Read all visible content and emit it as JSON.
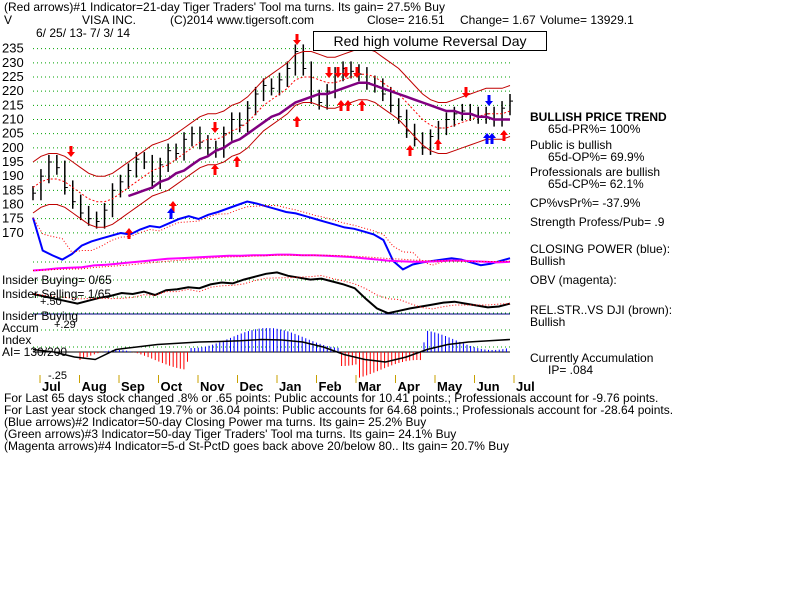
{
  "header": {
    "line1": "(Red arrows)#1 Indicator=21-day Tiger Traders' Tool ma turns. Its gain= 27.5% Buy",
    "ticker": "V",
    "company": "VISA INC.",
    "copyright": "(C)2014 www.tigersoft.com",
    "close": "Close=  216.51",
    "change": "Change= 1.67",
    "volume": "Volume= 13929.1",
    "date_range": "6/ 25/ 13- 7/ 3/ 14"
  },
  "banner": "Red high volume Reversal Day",
  "right_panel": {
    "trend_title": "BULLISH PRICE TREND",
    "pr": "65d-PR%= 100%",
    "public_title": "Public is bullish",
    "op": "65d-OP%= 69.9%",
    "prof_title": "Professionals are bullish",
    "cp": "65d-CP%= 62.1%",
    "cpvspr": "CP%vsPr%= -37.9%",
    "strength": "Strength Profess/Pub= .9",
    "closing_power": "CLOSING POWER (blue):",
    "closing_power_val": "Bullish",
    "obv": "OBV (magenta):",
    "relstr": "REL.STR..VS DJI (brown):",
    "relstr_val": "Bullish",
    "accum": "Currently Accumulation",
    "ip": "IP= .084"
  },
  "left_labels": {
    "insider_buying": "Insider Buying= 0/65",
    "insider_selling": "Insider Selling= 1/65",
    "insider_buying2": "Insider Buying",
    "accum": "Accum",
    "index": "Index",
    "ai": "AI= 130/200",
    "plus50": "+.50",
    "plus29": "+.29",
    "minus25": "-.25"
  },
  "footer": {
    "line1": "For Last 65 days stock changed  .8% or  .65 points:  Public accounts for  10.41 points.;  Professionals account for -9.76 points.",
    "line2": "For Last year stock changed  19.7% or  36.04 points:  Public accounts for  64.68 points.;  Professionals account for -28.64 points.",
    "line3": "(Blue arrows)#2 Indicator=50-day Closing Power ma turns. Its gain= 25.2% Buy",
    "line4": "(Green arrows)#3 Indicator=50-day Tiger Traders' Tool ma turns. Its gain= 24.1% Buy",
    "line5": "(Magenta arrows)#4 Indicator=5-d St-PctD goes back above 20/below 80.. Its gain= 20.7% Buy"
  },
  "chart_data": {
    "type": "line",
    "title": "VISA INC.",
    "y_ticks": [
      235,
      230,
      225,
      220,
      215,
      210,
      205,
      200,
      195,
      190,
      185,
      180,
      175,
      170
    ],
    "ylim": [
      165,
      237
    ],
    "x_month_labels": [
      "Jul",
      "Aug",
      "Sep",
      "Oct",
      "Nov",
      "Dec",
      "Jan",
      "Feb",
      "Mar",
      "Apr",
      "May",
      "Jun",
      "Jul"
    ],
    "price_close": [
      184,
      190,
      195,
      193,
      186,
      181,
      177,
      175,
      174,
      178,
      185,
      188,
      192,
      196,
      195,
      188,
      194,
      199,
      198,
      203,
      205,
      202,
      200,
      199,
      205,
      210,
      208,
      214,
      219,
      222,
      221,
      224,
      228,
      234,
      228,
      218,
      216,
      220,
      226,
      228,
      227,
      226,
      223,
      222,
      219,
      215,
      211,
      206,
      203,
      200,
      204,
      207,
      210,
      212,
      213,
      212,
      211,
      212,
      210,
      214,
      216.5
    ],
    "ma_21": [
      186,
      188,
      189,
      189,
      188,
      186,
      184,
      182,
      181,
      181,
      182,
      184,
      186,
      188,
      190,
      192,
      193,
      194,
      196,
      198,
      200,
      202,
      203,
      203,
      204,
      206,
      207,
      209,
      212,
      215,
      217,
      219,
      221,
      224,
      225,
      225,
      224,
      223,
      223,
      224,
      225,
      226,
      226,
      225,
      223,
      221,
      219,
      216,
      213,
      210,
      208,
      207,
      207,
      208,
      209,
      210,
      211,
      212,
      212,
      212,
      213
    ],
    "ma_50": [
      null,
      null,
      null,
      null,
      null,
      null,
      null,
      null,
      null,
      null,
      null,
      null,
      183,
      184,
      185,
      186,
      188,
      189,
      191,
      192,
      194,
      196,
      197,
      199,
      200,
      202,
      203,
      205,
      207,
      209,
      211,
      212,
      214,
      216,
      217,
      218,
      219,
      219,
      220,
      221,
      222,
      223,
      223,
      222,
      221,
      220,
      219,
      218,
      217,
      216,
      215,
      214,
      213,
      213,
      212,
      212,
      211,
      211,
      210,
      210,
      210
    ],
    "series": [
      {
        "name": "CLOSING POWER (blue)",
        "color": "#0000ff",
        "values": [
          0.72,
          0.25,
          0.18,
          0.12,
          0.2,
          0.32,
          0.38,
          0.42,
          0.46,
          0.5,
          0.48,
          0.55,
          0.6,
          0.58,
          0.64,
          0.7,
          0.74,
          0.7,
          0.76,
          0.8,
          0.85,
          0.9,
          0.95,
          0.92,
          0.88,
          0.84,
          0.8,
          0.78,
          0.74,
          0.7,
          0.66,
          0.62,
          0.58,
          0.56,
          0.52,
          0.48,
          0.4,
          0.1,
          -0.02,
          0.05,
          0.08,
          0.1,
          0.12,
          0.14,
          0.12,
          0.08,
          0.04,
          0.06,
          0.1,
          0.14
        ]
      },
      {
        "name": "OBV (magenta)",
        "color": "#ff00ff",
        "values": [
          0.05,
          0.08,
          0.12,
          0.14,
          0.16,
          0.22,
          0.24,
          0.28,
          0.32,
          0.36,
          0.4,
          0.44,
          0.46,
          0.48,
          0.5,
          0.52,
          0.54,
          0.54,
          0.56,
          0.56,
          0.58,
          0.58,
          0.56,
          0.56,
          0.54,
          0.52,
          0.5,
          0.46,
          0.42,
          0.38,
          0.36,
          0.34,
          0.34,
          0.36,
          0.38,
          0.38,
          0.36,
          0.34,
          0.32,
          0.34
        ]
      },
      {
        "name": "REL.STR..VS DJI (brown)",
        "color": "#000000",
        "values": [
          0.5,
          0.45,
          0.4,
          0.35,
          0.3,
          0.36,
          0.42,
          0.46,
          0.52,
          0.5,
          0.55,
          0.48,
          0.58,
          0.6,
          0.64,
          0.62,
          0.7,
          0.74,
          0.72,
          0.8,
          0.86,
          0.92,
          0.95,
          0.88,
          0.84,
          0.8,
          0.82,
          0.76,
          0.7,
          0.62,
          0.4,
          0.2,
          0.1,
          0.15,
          0.2,
          0.24,
          0.28,
          0.32,
          0.34,
          0.3,
          0.26,
          0.22,
          0.24,
          0.3
        ]
      }
    ]
  }
}
